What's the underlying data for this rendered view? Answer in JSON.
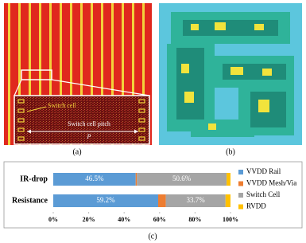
{
  "panels": {
    "a": {
      "label": "(a)",
      "annotations": [
        "Switch cell",
        "Switch cell pitch",
        "P"
      ]
    },
    "b": {
      "label": "(b)"
    }
  },
  "chart_data": {
    "type": "stacked_bar_horizontal",
    "label": "(c)",
    "categories": [
      "IR-drop",
      "Resistance"
    ],
    "series": [
      {
        "name": "VVDD Rail",
        "color": "#5b9bd5",
        "values": [
          46.5,
          59.2
        ],
        "value_labels": [
          "46.5%",
          "59.2%"
        ]
      },
      {
        "name": "VVDD Mesh/Via",
        "color": "#ed7d31",
        "values": [
          0.7,
          4.3
        ]
      },
      {
        "name": "Switch Cell",
        "color": "#a5a5a5",
        "values": [
          50.6,
          33.7
        ],
        "value_labels": [
          "50.6%",
          "33.7%"
        ]
      },
      {
        "name": "RVDD",
        "color": "#ffc000",
        "values": [
          2.2,
          2.8
        ]
      }
    ],
    "xlim": [
      0,
      100
    ],
    "xticks": [
      {
        "value": 0,
        "label": "0%"
      },
      {
        "value": 20,
        "label": "20%"
      },
      {
        "value": 40,
        "label": "40%"
      },
      {
        "value": 60,
        "label": "60%"
      },
      {
        "value": 80,
        "label": "80%"
      },
      {
        "value": 100,
        "label": "100%"
      }
    ]
  }
}
